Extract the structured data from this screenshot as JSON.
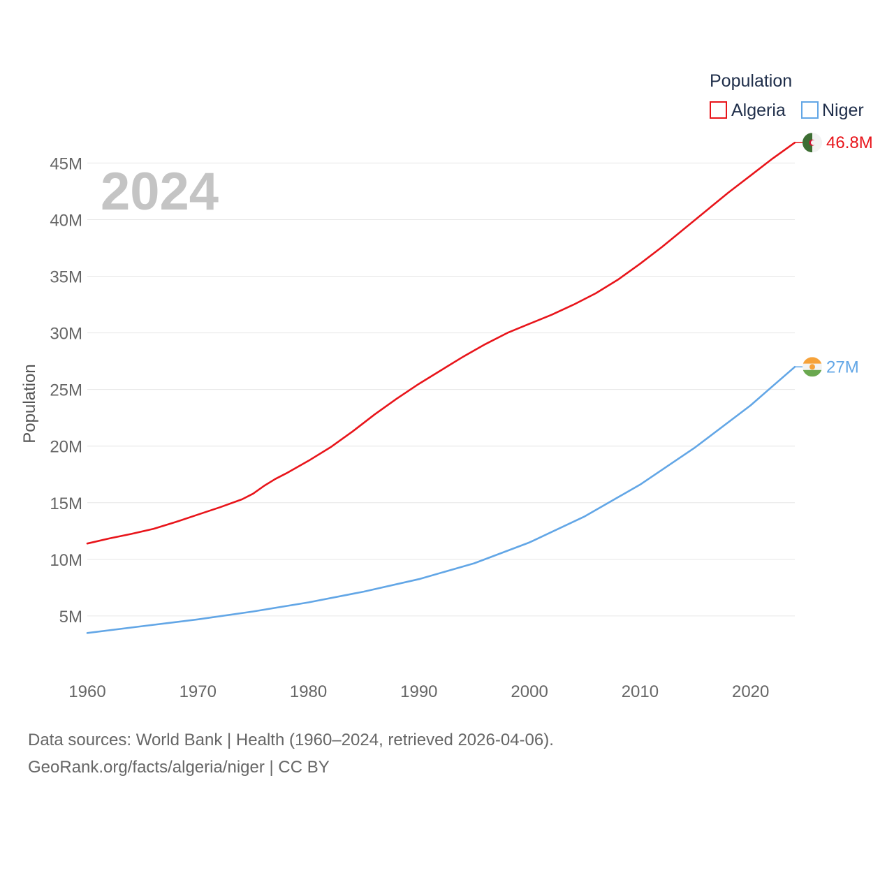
{
  "chart_data": {
    "type": "line",
    "title": "",
    "year_display": "2024",
    "xlabel": "",
    "ylabel": "Population",
    "xlim": [
      1960,
      2024
    ],
    "ylim": [
      0,
      47000000
    ],
    "x_ticks": [
      1960,
      1970,
      1980,
      1990,
      2000,
      2010,
      2020
    ],
    "x_tick_labels": [
      "1960",
      "1970",
      "1980",
      "1990",
      "2000",
      "2010",
      "2020"
    ],
    "y_ticks": [
      5000000,
      10000000,
      15000000,
      20000000,
      25000000,
      30000000,
      35000000,
      40000000,
      45000000
    ],
    "y_tick_labels": [
      "5M",
      "10M",
      "15M",
      "20M",
      "25M",
      "30M",
      "35M",
      "40M",
      "45M"
    ],
    "grid": true,
    "legend": {
      "title": "Population",
      "position": "top-right"
    },
    "series": [
      {
        "name": "Algeria",
        "color": "#e8141a",
        "end_label": "46.8M",
        "flag_icon": "algeria-flag-icon",
        "x": [
          1960,
          1962,
          1964,
          1966,
          1968,
          1970,
          1972,
          1974,
          1975,
          1976,
          1977,
          1978,
          1980,
          1982,
          1984,
          1986,
          1988,
          1990,
          1992,
          1994,
          1996,
          1998,
          2000,
          2002,
          2004,
          2006,
          2008,
          2010,
          2012,
          2014,
          2016,
          2018,
          2020,
          2022,
          2024
        ],
        "values": [
          11400000,
          11850000,
          12250000,
          12700000,
          13300000,
          13950000,
          14600000,
          15300000,
          15800000,
          16500000,
          17100000,
          17600000,
          18700000,
          19900000,
          21300000,
          22800000,
          24200000,
          25500000,
          26700000,
          27900000,
          29000000,
          30000000,
          30800000,
          31600000,
          32500000,
          33500000,
          34700000,
          36100000,
          37600000,
          39200000,
          40800000,
          42400000,
          43900000,
          45400000,
          46800000
        ]
      },
      {
        "name": "Niger",
        "color": "#62a6e6",
        "end_label": "27M",
        "flag_icon": "niger-flag-icon",
        "x": [
          1960,
          1965,
          1970,
          1975,
          1980,
          1985,
          1990,
          1995,
          2000,
          2005,
          2010,
          2015,
          2020,
          2022,
          2024
        ],
        "values": [
          3500000,
          4100000,
          4700000,
          5400000,
          6200000,
          7150000,
          8250000,
          9650000,
          11500000,
          13800000,
          16600000,
          19900000,
          23600000,
          25300000,
          27000000
        ]
      }
    ]
  },
  "footer": {
    "line1": "Data sources: World Bank | Health (1960–2024, retrieved 2026-04-06).",
    "line2": "GeoRank.org/facts/algeria/niger | CC BY"
  }
}
